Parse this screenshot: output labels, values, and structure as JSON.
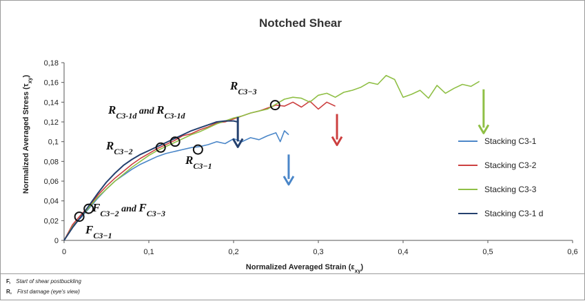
{
  "chart_data": {
    "type": "line",
    "title": "Notched Shear",
    "xlabel": "Normalized Averaged Strain (ε",
    "xlabel_sub": "xy",
    "xlabel_close": ")",
    "ylabel": "Normalized Averaged Stress (τ",
    "ylabel_sub": "xy",
    "ylabel_close": ")",
    "xlim": [
      0,
      0.6
    ],
    "ylim": [
      0,
      0.18
    ],
    "x_ticks": [
      0,
      0.1,
      0.2,
      0.3,
      0.4,
      0.5,
      0.6
    ],
    "x_tick_labels": [
      "0",
      "0,1",
      "0,2",
      "0,3",
      "0,4",
      "0,5",
      "0,6"
    ],
    "y_ticks": [
      0,
      0.02,
      0.04,
      0.06,
      0.08,
      0.1,
      0.12,
      0.14,
      0.16,
      0.18
    ],
    "y_tick_labels": [
      "0",
      "0,02",
      "0,04",
      "0,06",
      "0,08",
      "0,1",
      "0,12",
      "0,14",
      "0,16",
      "0,18"
    ],
    "grid": false,
    "legend_position": "right",
    "series": [
      {
        "name": "Stacking C3-1",
        "color": "#4a86c8",
        "x": [
          0,
          0.01,
          0.02,
          0.03,
          0.04,
          0.05,
          0.06,
          0.07,
          0.08,
          0.09,
          0.1,
          0.11,
          0.12,
          0.13,
          0.14,
          0.15,
          0.16,
          0.17,
          0.18,
          0.19,
          0.2,
          0.21,
          0.22,
          0.23,
          0.24,
          0.25,
          0.255,
          0.26,
          0.265
        ],
        "y": [
          0,
          0.015,
          0.023,
          0.033,
          0.043,
          0.052,
          0.06,
          0.066,
          0.072,
          0.077,
          0.081,
          0.085,
          0.088,
          0.09,
          0.092,
          0.094,
          0.095,
          0.097,
          0.1,
          0.098,
          0.103,
          0.1,
          0.104,
          0.102,
          0.106,
          0.109,
          0.1,
          0.111,
          0.107
        ]
      },
      {
        "name": "Stacking C3-2",
        "color": "#cc3f3f",
        "x": [
          0,
          0.01,
          0.02,
          0.03,
          0.04,
          0.05,
          0.06,
          0.07,
          0.08,
          0.09,
          0.1,
          0.11,
          0.12,
          0.13,
          0.14,
          0.15,
          0.16,
          0.17,
          0.18,
          0.19,
          0.2,
          0.21,
          0.22,
          0.23,
          0.24,
          0.25,
          0.26,
          0.27,
          0.28,
          0.29,
          0.3,
          0.31,
          0.32
        ],
        "y": [
          0,
          0.016,
          0.026,
          0.035,
          0.046,
          0.055,
          0.063,
          0.07,
          0.077,
          0.083,
          0.088,
          0.093,
          0.097,
          0.101,
          0.106,
          0.108,
          0.112,
          0.115,
          0.119,
          0.12,
          0.123,
          0.126,
          0.129,
          0.131,
          0.134,
          0.137,
          0.136,
          0.14,
          0.135,
          0.141,
          0.133,
          0.14,
          0.136
        ]
      },
      {
        "name": "Stacking C3-3",
        "color": "#8fbf45",
        "x": [
          0,
          0.01,
          0.02,
          0.03,
          0.04,
          0.05,
          0.06,
          0.07,
          0.08,
          0.09,
          0.1,
          0.11,
          0.12,
          0.13,
          0.14,
          0.15,
          0.16,
          0.17,
          0.18,
          0.19,
          0.2,
          0.21,
          0.22,
          0.23,
          0.24,
          0.25,
          0.26,
          0.27,
          0.28,
          0.29,
          0.3,
          0.31,
          0.32,
          0.33,
          0.34,
          0.35,
          0.36,
          0.37,
          0.38,
          0.39,
          0.4,
          0.41,
          0.42,
          0.43,
          0.44,
          0.45,
          0.46,
          0.47,
          0.48,
          0.49
        ],
        "y": [
          0,
          0.014,
          0.024,
          0.034,
          0.044,
          0.052,
          0.06,
          0.067,
          0.074,
          0.08,
          0.086,
          0.091,
          0.095,
          0.099,
          0.103,
          0.107,
          0.11,
          0.114,
          0.118,
          0.121,
          0.124,
          0.126,
          0.129,
          0.131,
          0.133,
          0.138,
          0.143,
          0.145,
          0.144,
          0.14,
          0.147,
          0.149,
          0.145,
          0.15,
          0.152,
          0.155,
          0.16,
          0.158,
          0.167,
          0.163,
          0.145,
          0.148,
          0.152,
          0.144,
          0.157,
          0.149,
          0.154,
          0.158,
          0.156,
          0.161
        ]
      },
      {
        "name": "Stacking C3-1 d",
        "color": "#24406e",
        "x": [
          0,
          0.01,
          0.02,
          0.03,
          0.04,
          0.05,
          0.06,
          0.07,
          0.08,
          0.09,
          0.1,
          0.11,
          0.12,
          0.13,
          0.14,
          0.15,
          0.16,
          0.17,
          0.18,
          0.19,
          0.2,
          0.205
        ],
        "y": [
          0,
          0.013,
          0.024,
          0.036,
          0.048,
          0.059,
          0.068,
          0.076,
          0.082,
          0.087,
          0.091,
          0.095,
          0.099,
          0.103,
          0.107,
          0.111,
          0.114,
          0.117,
          0.12,
          0.121,
          0.121,
          0.12
        ]
      }
    ],
    "annotations": [
      {
        "id": "fc31",
        "base": "F",
        "sub": "C3−1"
      },
      {
        "id": "fc32",
        "base": "F",
        "sub": "C3−2",
        "mid": " and ",
        "base2": "F",
        "sub2": "C3−3"
      },
      {
        "id": "rc32",
        "base": "R",
        "sub": "C3−2"
      },
      {
        "id": "rc31",
        "base": "R",
        "sub": "C3−1"
      },
      {
        "id": "rc1d",
        "base": "R",
        "sub": "C3-1d",
        "mid": " and ",
        "base2": "R",
        "sub2": "C3-1d"
      },
      {
        "id": "rc33",
        "base": "R",
        "sub": "C3−3"
      }
    ],
    "markers": [
      {
        "x": 0.018,
        "y": 0.024
      },
      {
        "x": 0.029,
        "y": 0.032
      },
      {
        "x": 0.114,
        "y": 0.094
      },
      {
        "x": 0.131,
        "y": 0.1
      },
      {
        "x": 0.158,
        "y": 0.092
      },
      {
        "x": 0.249,
        "y": 0.137
      }
    ],
    "arrows": [
      {
        "x": 0.205,
        "y_from": 0.125,
        "y_to": 0.096,
        "color": "#24406e"
      },
      {
        "x": 0.265,
        "y_from": 0.087,
        "y_to": 0.058,
        "color": "#4a86c8"
      },
      {
        "x": 0.322,
        "y_from": 0.128,
        "y_to": 0.098,
        "color": "#cc3f3f"
      },
      {
        "x": 0.495,
        "y_from": 0.153,
        "y_to": 0.11,
        "color": "#8fbf45"
      }
    ]
  },
  "footnotes": [
    {
      "symbol": "F,",
      "text": "Start of shear postbuckling"
    },
    {
      "symbol": "R,",
      "text": "First damage (eye's view)"
    }
  ]
}
